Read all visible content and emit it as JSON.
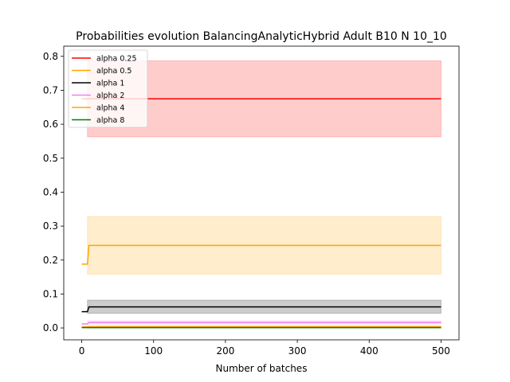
{
  "chart_data": {
    "type": "line",
    "title": "Probabilities evolution BalancingAnalyticHybrid Adult B10 N 10_10",
    "xlabel": "Number of batches",
    "ylabel": "",
    "xlim": [
      -25,
      525
    ],
    "ylim": [
      -0.035,
      0.83
    ],
    "xticks": [
      0,
      100,
      200,
      300,
      400,
      500
    ],
    "yticks": [
      0.0,
      0.1,
      0.2,
      0.3,
      0.4,
      0.5,
      0.6,
      0.7,
      0.8
    ],
    "grid": false,
    "legend_position": "top-left",
    "series": [
      {
        "name": "alpha 0.25",
        "color": "#ff0000",
        "band_color": "#ff0000",
        "x": [
          0,
          8,
          8,
          10,
          500
        ],
        "y": [
          0.675,
          0.675,
          0.675,
          0.675,
          0.675
        ],
        "band_x": [
          8,
          500
        ],
        "band_lower": [
          0.563,
          0.563
        ],
        "band_upper": [
          0.787,
          0.787
        ]
      },
      {
        "name": "alpha 0.5",
        "color": "#ffa500",
        "band_color": "#ffa500",
        "x": [
          0,
          8,
          10,
          500
        ],
        "y": [
          0.188,
          0.188,
          0.243,
          0.243
        ],
        "band_x": [
          8,
          500
        ],
        "band_lower": [
          0.158,
          0.158
        ],
        "band_upper": [
          0.328,
          0.328
        ]
      },
      {
        "name": "alpha 1",
        "color": "#000000",
        "band_color": "#000000",
        "x": [
          0,
          8,
          10,
          500
        ],
        "y": [
          0.048,
          0.048,
          0.062,
          0.062
        ],
        "band_x": [
          8,
          500
        ],
        "band_lower": [
          0.043,
          0.043
        ],
        "band_upper": [
          0.082,
          0.082
        ]
      },
      {
        "name": "alpha 2",
        "color": "#ee82ee",
        "band_color": "#ee82ee",
        "x": [
          0,
          8,
          10,
          500
        ],
        "y": [
          0.012,
          0.012,
          0.016,
          0.016
        ],
        "band_x": [
          8,
          500
        ],
        "band_lower": [
          0.011,
          0.011
        ],
        "band_upper": [
          0.021,
          0.021
        ]
      },
      {
        "name": "alpha 4",
        "color": "#ffa500",
        "band_color": "#ffa500",
        "x": [
          0,
          8,
          10,
          500
        ],
        "y": [
          0.003,
          0.003,
          0.004,
          0.004
        ],
        "band_x": [
          8,
          500
        ],
        "band_lower": [
          0.002,
          0.002
        ],
        "band_upper": [
          0.005,
          0.005
        ]
      },
      {
        "name": "alpha 8",
        "color": "#008000",
        "band_color": "#008000",
        "x": [
          0,
          8,
          10,
          500
        ],
        "y": [
          0.001,
          0.001,
          0.001,
          0.001
        ],
        "band_x": [
          8,
          500
        ],
        "band_lower": [
          0.0,
          0.0
        ],
        "band_upper": [
          0.002,
          0.002
        ]
      }
    ]
  }
}
